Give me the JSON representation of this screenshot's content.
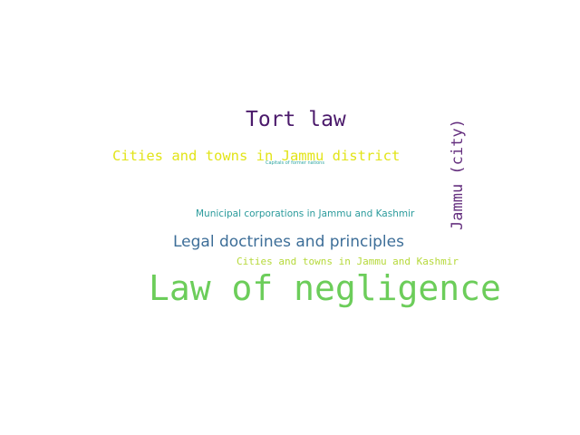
{
  "words": [
    {
      "text": "Law of negligence",
      "color": "#6ccd5a"
    },
    {
      "text": "Tort law",
      "color": "#4b1a6b"
    },
    {
      "text": "Cities and towns in Jammu district",
      "color": "#e2e418"
    },
    {
      "text": "Capitals of former nations",
      "color": "#2ea5a0"
    },
    {
      "text": "Jammu (city)",
      "color": "#65307f"
    },
    {
      "text": "Municipal corporations in Jammu and Kashmir",
      "color": "#2b9b9c"
    },
    {
      "text": "Legal doctrines and principles",
      "color": "#3d6e98"
    },
    {
      "text": "Cities and towns in Jammu and Kashmir",
      "color": "#b6d93a"
    }
  ]
}
